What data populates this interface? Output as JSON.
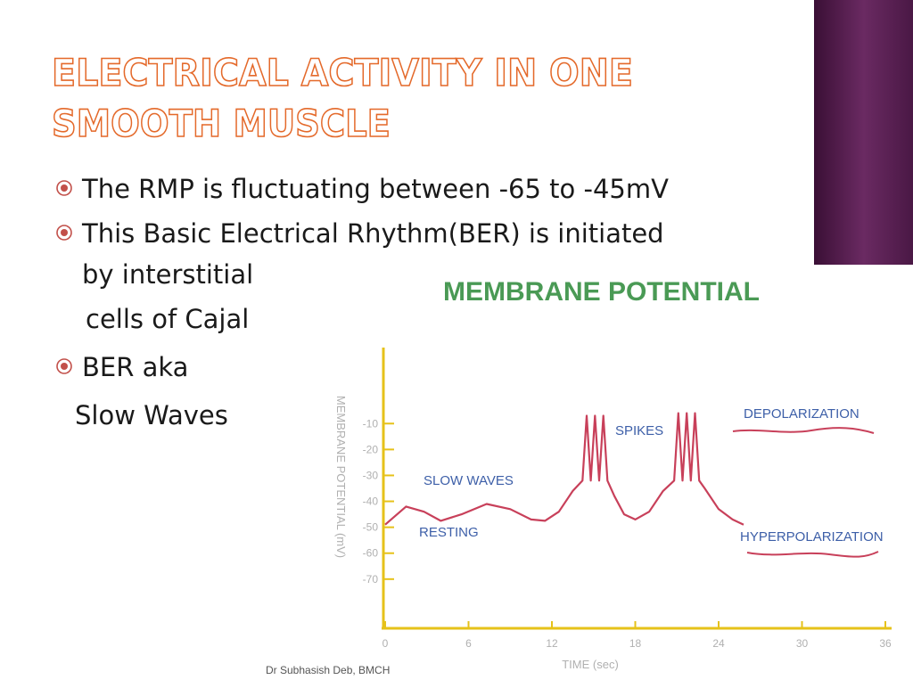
{
  "title": [
    "ELECTRICAL ACTIVITY IN ONE",
    "SMOOTH MUSCLE"
  ],
  "bullets": [
    {
      "lines": [
        "The RMP is fluctuating between -65 to -45mV"
      ]
    },
    {
      "lines": [
        "This Basic Electrical Rhythm(BER) is initiated",
        "by interstitial",
        "cells of Cajal"
      ]
    },
    {
      "lines": [
        "BER aka",
        "Slow Waves"
      ]
    }
  ],
  "footer": "Dr Subhasish Deb, BMCH",
  "chart_data": {
    "type": "line",
    "title": "MEMBRANE POTENTIAL",
    "y_label": "MEMBRANE POTENTIAL (mV)",
    "x_label": "TIME (sec)",
    "x": [
      0,
      1.5,
      2.8,
      4,
      5.5,
      7.3,
      9,
      10.5,
      11.5,
      12.5,
      13.5,
      14.2,
      14.5,
      14.8,
      15.1,
      15.4,
      15.7,
      16,
      16.5,
      17.2,
      18,
      19,
      20,
      20.8,
      21.1,
      21.4,
      21.7,
      22,
      22.3,
      22.6,
      23,
      24,
      25,
      25.8
    ],
    "values": [
      -49,
      -42,
      -44,
      -47.5,
      -45,
      -41,
      -43,
      -47,
      -47.5,
      -44,
      -36,
      -32,
      -7,
      -32,
      -7,
      -32,
      -7,
      -32,
      -38,
      -45,
      -47,
      -44,
      -36,
      -32,
      -6,
      -32,
      -6,
      -32,
      -6,
      -32,
      -35,
      -43,
      -47,
      -49
    ],
    "color": "#c8405a",
    "xlim": [
      0,
      36
    ],
    "ylim": [
      -90,
      20
    ],
    "xticks": [
      0,
      6,
      12,
      18,
      24,
      30,
      36
    ],
    "yticks": [
      -10,
      -20,
      -30,
      -40,
      -50,
      -60,
      -70
    ],
    "annotations": [
      "SLOW WAVES",
      "RESTING",
      "SPIKES",
      "DEPOLARIZATION",
      "HYPERPOLARIZATION"
    ]
  }
}
